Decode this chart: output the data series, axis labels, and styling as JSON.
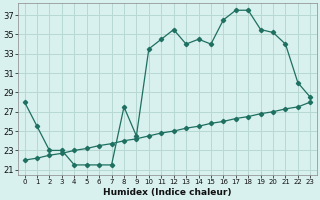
{
  "xlabel": "Humidex (Indice chaleur)",
  "background_color": "#d8f0ee",
  "grid_color": "#b8d8d4",
  "line_color": "#1e7060",
  "xlim": [
    -0.5,
    23.5
  ],
  "ylim": [
    20.5,
    38.2
  ],
  "xticks": [
    0,
    1,
    2,
    3,
    4,
    5,
    6,
    7,
    8,
    9,
    10,
    11,
    12,
    13,
    14,
    15,
    16,
    17,
    18,
    19,
    20,
    21,
    22,
    23
  ],
  "yticks": [
    21,
    23,
    25,
    27,
    29,
    31,
    33,
    35,
    37
  ],
  "line1_x": [
    0,
    1,
    2,
    3,
    4,
    5,
    6,
    7,
    8,
    9,
    10,
    11,
    12,
    13,
    14,
    15,
    16,
    17,
    18,
    19,
    20,
    21,
    22,
    23
  ],
  "line1_y": [
    28,
    25.5,
    23,
    23,
    21.5,
    21.5,
    21.5,
    21.5,
    27.5,
    24.5,
    33.5,
    34.5,
    35.5,
    34,
    34.5,
    34,
    36.5,
    37.5,
    37.5,
    35.5,
    35.2,
    34,
    30,
    28.5
  ],
  "line2_x": [
    0,
    1,
    2,
    3,
    4,
    5,
    6,
    7,
    8,
    9,
    10,
    11,
    12,
    13,
    14,
    15,
    16,
    17,
    18,
    19,
    20,
    21,
    22,
    23
  ],
  "line2_y": [
    22,
    22.2,
    22.5,
    22.7,
    23.0,
    23.2,
    23.5,
    23.7,
    24.0,
    24.2,
    24.5,
    24.8,
    25.0,
    25.3,
    25.5,
    25.8,
    26.0,
    26.3,
    26.5,
    26.8,
    27.0,
    27.3,
    27.5,
    28.0
  ]
}
